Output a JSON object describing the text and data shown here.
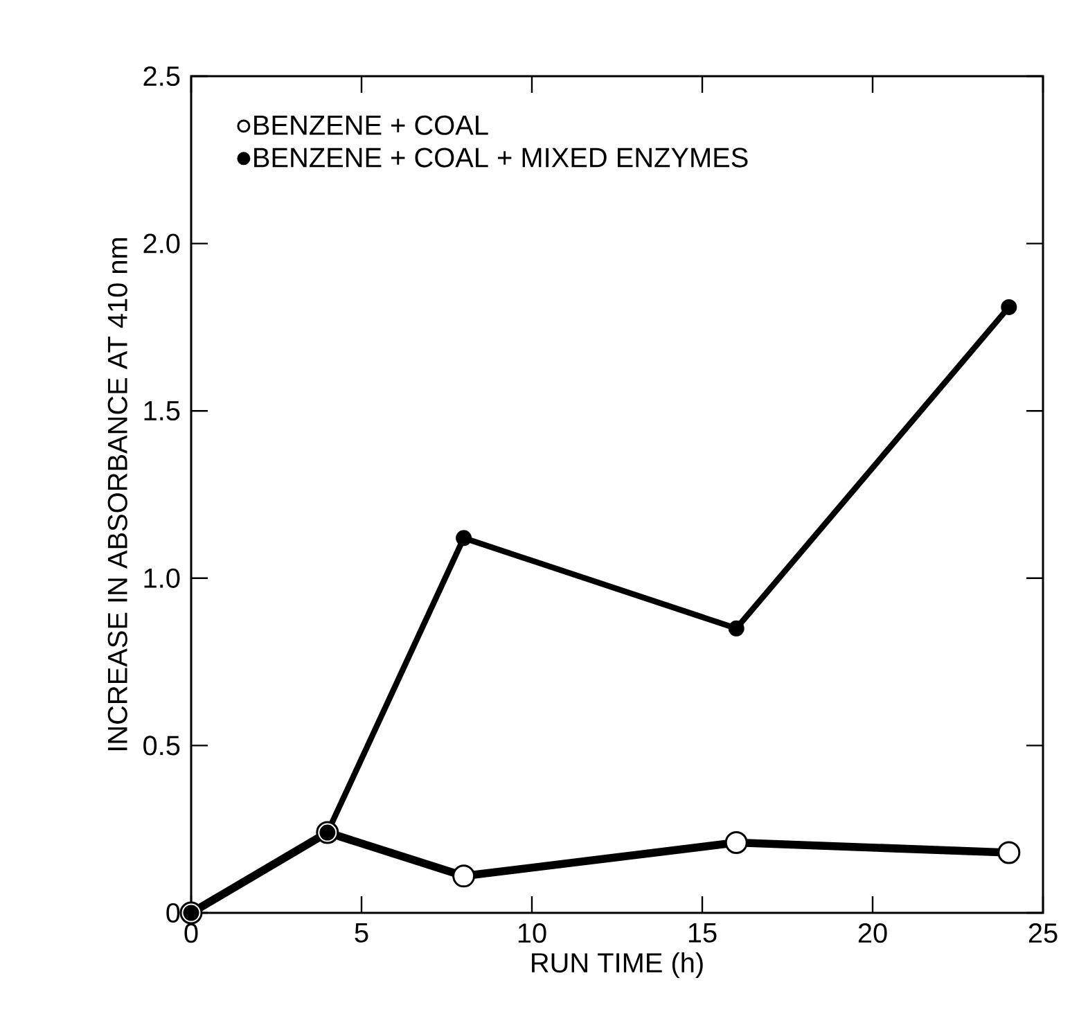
{
  "chart_data": {
    "type": "line",
    "xlabel": "RUN TIME (h)",
    "ylabel": "INCREASE IN ABSORBANCE AT 410 nm",
    "x": [
      0,
      4,
      8,
      16,
      24
    ],
    "series": [
      {
        "name": "BENZENE + COAL",
        "color": "#000000",
        "values": [
          0,
          0.24,
          0.11,
          0.21,
          0.18
        ]
      },
      {
        "name": "BENZENE + COAL + MIXED ENZYMES",
        "color": "#000000",
        "values": [
          0,
          0.24,
          1.12,
          0.85,
          1.81
        ]
      }
    ],
    "xlim": [
      0,
      25
    ],
    "ylim": [
      0,
      2.5
    ],
    "xticks": [
      0,
      5,
      10,
      15,
      20,
      25
    ],
    "yticks": [
      0,
      0.5,
      {
        "value": 1,
        "label": "1.0"
      },
      1.5,
      {
        "value": 2,
        "label": "2.0"
      },
      2.5
    ],
    "grid": false,
    "legend": "top left",
    "marker": "circle",
    "line_style": "solid"
  }
}
